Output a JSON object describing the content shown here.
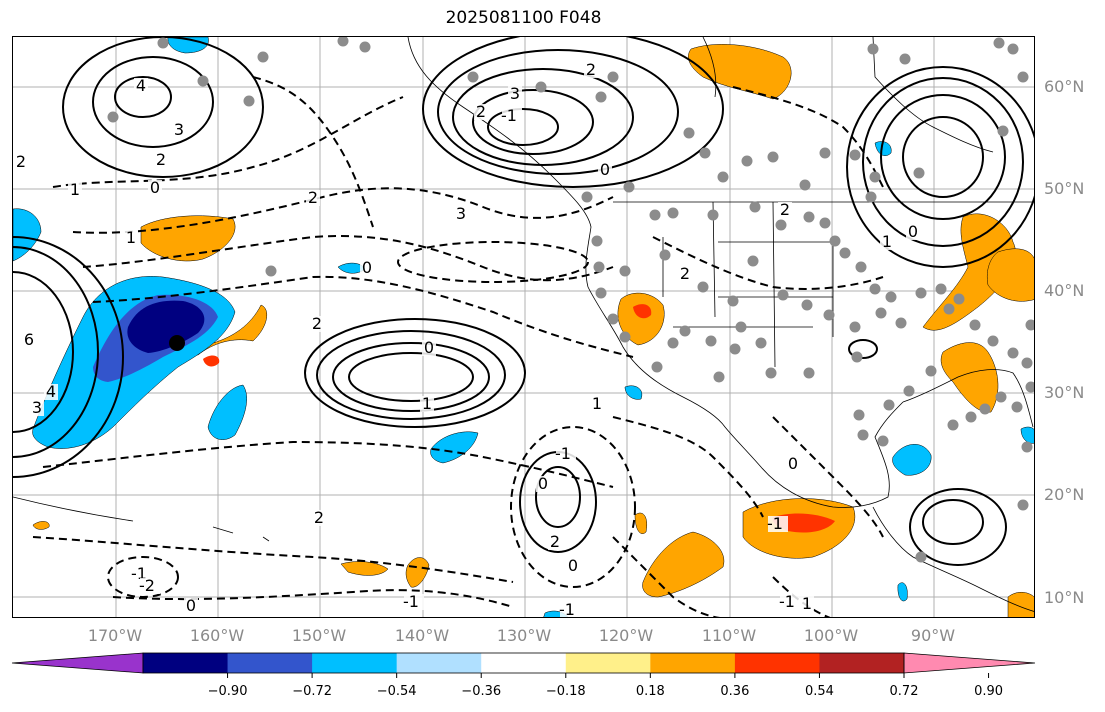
{
  "title": "2025081100 F048",
  "map": {
    "latitude_labels": [
      "60°N",
      "50°N",
      "40°N",
      "30°N",
      "20°N",
      "10°N"
    ],
    "longitude_labels": [
      "170°W",
      "160°W",
      "150°W",
      "140°W",
      "130°W",
      "120°W",
      "110°W",
      "100°W",
      "90°W"
    ],
    "contour_labels": [
      "4",
      "3",
      "2",
      "1",
      "0",
      "-1",
      "2",
      "3",
      "2",
      "0",
      "2",
      "3",
      "6",
      "4",
      "3",
      "2",
      "1",
      "0",
      "2",
      "1",
      "1",
      "0",
      "2",
      "-1",
      "0",
      "2",
      "0",
      "-1",
      "2",
      "-2",
      "-1",
      "-1",
      "1",
      "0",
      "0",
      "-1",
      "1",
      "0",
      "2",
      "-1"
    ],
    "fill_colors": {
      "orange": "#ffa500",
      "red_orange": "#ff3300",
      "light_blue": "#00bfff",
      "medium_blue": "#3355cc",
      "navy": "#000080"
    },
    "station_marker_color": "#8c8c8c",
    "highlight_marker_color": "#000000",
    "grid_color": "#b0b0b0"
  },
  "colorbar": {
    "colors": [
      "#9933cc",
      "#000080",
      "#3355cc",
      "#00bfff",
      "#b0e0ff",
      "#ffffff",
      "#fff08a",
      "#ffa500",
      "#ff3300",
      "#b22222",
      "#ff8ab0"
    ],
    "tick_labels": [
      "−0.90",
      "−0.72",
      "−0.54",
      "−0.36",
      "−0.18",
      "0.18",
      "0.36",
      "0.54",
      "0.72",
      "0.90"
    ]
  }
}
